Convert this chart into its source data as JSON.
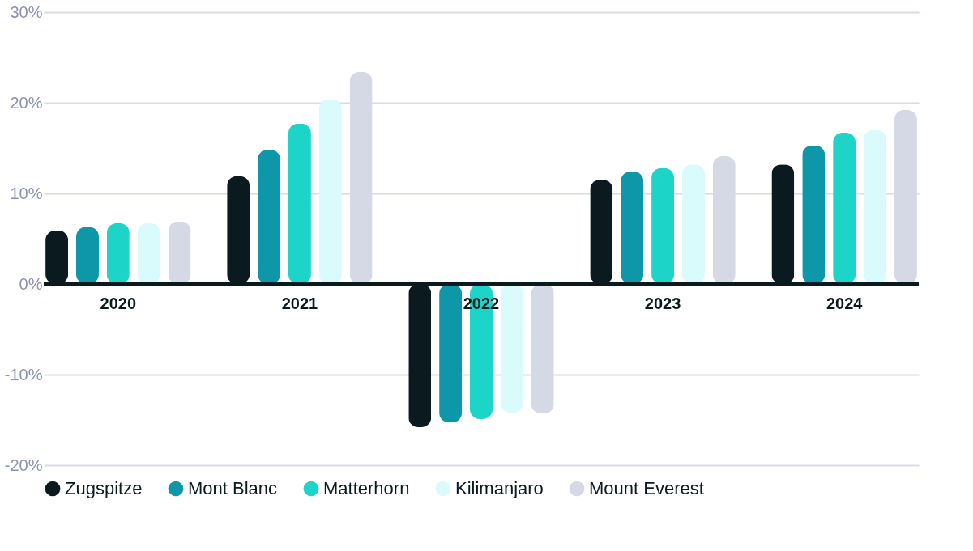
{
  "chart_data": {
    "type": "bar",
    "categories": [
      "2020",
      "2021",
      "2022",
      "2023",
      "2024"
    ],
    "series": [
      {
        "name": "Zugspitze",
        "color": "#0b1a1f",
        "values": [
          5.9,
          11.9,
          -15.8,
          11.5,
          13.2
        ]
      },
      {
        "name": "Mont Blanc",
        "color": "#0e97a8",
        "values": [
          6.3,
          14.8,
          -15.3,
          12.4,
          15.3
        ]
      },
      {
        "name": "Matterhorn",
        "color": "#1dd4c8",
        "values": [
          6.7,
          17.7,
          -14.9,
          12.8,
          16.7
        ]
      },
      {
        "name": "Kilimanjaro",
        "color": "#d9fbfb",
        "values": [
          6.7,
          20.4,
          -14.2,
          13.2,
          17.0
        ]
      },
      {
        "name": "Mount Everest",
        "color": "#d5d9e5",
        "values": [
          6.9,
          23.4,
          -14.3,
          14.1,
          19.2
        ]
      }
    ],
    "ylim": [
      -20,
      30
    ],
    "yticks": [
      {
        "value": -20,
        "label": "-20%"
      },
      {
        "value": -10,
        "label": "-10%"
      },
      {
        "value": 0,
        "label": "0%"
      },
      {
        "value": 10,
        "label": "10%"
      },
      {
        "value": 20,
        "label": "20%"
      },
      {
        "value": 30,
        "label": "30%"
      }
    ],
    "grid": "y",
    "legend": "bottom"
  }
}
